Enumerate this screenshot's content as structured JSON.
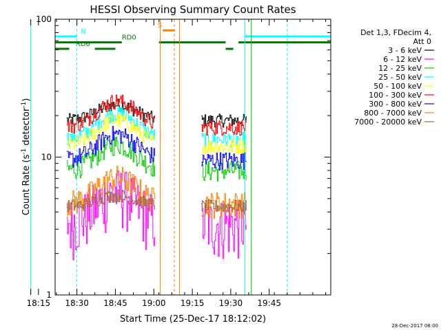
{
  "chart_data": {
    "type": "line",
    "title": "HESSI Observing Summary Count Rates",
    "xlabel": "Start Time (25-Dec-17 18:12:02)",
    "ylabel_main": "Count Rate (s",
    "ylabel_sup1": "-1",
    "ylabel_mid": " detector",
    "ylabel_sup2": "-1",
    "ylabel_end": ")",
    "footer": "28-Dec-2017 08:00",
    "x_range_min": [
      9.5,
      117.0
    ],
    "y_range": [
      1,
      100
    ],
    "yscale": "log",
    "x_ticks": [
      {
        "min": 0,
        "label": ""
      },
      {
        "min": 3,
        "label": "18:15"
      },
      {
        "min": 18,
        "label": "18:30"
      },
      {
        "min": 33,
        "label": "18:45"
      },
      {
        "min": 48,
        "label": "19:00"
      },
      {
        "min": 63,
        "label": "19:15"
      },
      {
        "min": 78,
        "label": "19:30"
      },
      {
        "min": 93,
        "label": "19:45"
      }
    ],
    "y_ticks": [
      {
        "value": 1,
        "label": "1"
      },
      {
        "value": 10,
        "label": "10"
      },
      {
        "value": 100,
        "label": "100"
      }
    ],
    "legend": {
      "header1": "Det 1,3, FDecim 4,",
      "header2": "Att 0",
      "placement": "top-right"
    },
    "series": [
      {
        "name": "3 - 6 keV",
        "color": "#000000",
        "base": 18.5,
        "peak_boost": 0.3,
        "noise": 0.05
      },
      {
        "name": "6 - 12 keV",
        "color": "#ff00ff",
        "base": 3.3,
        "peak_boost": 0.7,
        "noise": 0.22
      },
      {
        "name": "12 - 25 keV",
        "color": "#00cc00",
        "base": 8.0,
        "peak_boost": 0.55,
        "noise": 0.08
      },
      {
        "name": "25 - 50 keV",
        "color": "#00ffff",
        "base": 13.5,
        "peak_boost": 0.55,
        "noise": 0.06
      },
      {
        "name": "50 - 100 keV",
        "color": "#ffff00",
        "base": 12.0,
        "peak_boost": 0.55,
        "noise": 0.06
      },
      {
        "name": "100 - 300 keV",
        "color": "#ff0000",
        "base": 16.5,
        "peak_boost": 0.55,
        "noise": 0.06
      },
      {
        "name": "300 - 800 keV",
        "color": "#0000ff",
        "base": 9.5,
        "peak_boost": 0.55,
        "noise": 0.07
      },
      {
        "name": "800 - 7000 keV",
        "color": "#ff8000",
        "base": 4.6,
        "peak_boost": 0.55,
        "noise": 0.1
      },
      {
        "name": "7000 - 20000 keV",
        "color": "#996633",
        "base": 4.4,
        "peak_boost": 0.2,
        "noise": 0.05
      }
    ],
    "data_segments": [
      {
        "start": 14.0,
        "end": 48.5
      },
      {
        "start": 66.5,
        "end": 84.0
      }
    ],
    "flags": [
      {
        "label": "N",
        "color": "#00ffff",
        "level": 75,
        "segments": [
          [
            0,
            18
          ],
          [
            83.5,
            117
          ]
        ],
        "show_label": true,
        "label_at": 19.5
      },
      {
        "label": "RD0",
        "color": "#007700",
        "level": 68,
        "segments": [
          [
            0,
            35.5
          ],
          [
            50,
            76
          ],
          [
            81,
            117
          ]
        ],
        "show_label": true,
        "label_at": 35.5
      },
      {
        "label": "RD6",
        "color": "#007700",
        "level": 61,
        "segments": [
          [
            0,
            15
          ],
          [
            25,
            33
          ],
          [
            76,
            79
          ]
        ],
        "show_label": true,
        "label_at": 17.5
      },
      {
        "label": "S",
        "color": "#ff8000",
        "level": 83,
        "segments": [
          [
            51.5,
            56
          ]
        ],
        "show_label": true,
        "label_at": 49.5
      }
    ],
    "vlines": [
      {
        "min": 0,
        "color": "#00ffff",
        "dashed": false
      },
      {
        "min": 18,
        "color": "#00ffff",
        "dashed": true
      },
      {
        "min": 50.5,
        "color": "#ff8000",
        "dashed": false
      },
      {
        "min": 56.0,
        "color": "#ff8000",
        "dashed": true
      },
      {
        "min": 58.0,
        "color": "#ff8000",
        "dashed": false
      },
      {
        "min": 83.5,
        "color": "#00ffff",
        "dashed": false
      },
      {
        "min": 86.0,
        "color": "#00cc00",
        "dashed": false
      },
      {
        "min": 100.0,
        "color": "#00ffff",
        "dashed": true
      }
    ],
    "grid": false
  }
}
